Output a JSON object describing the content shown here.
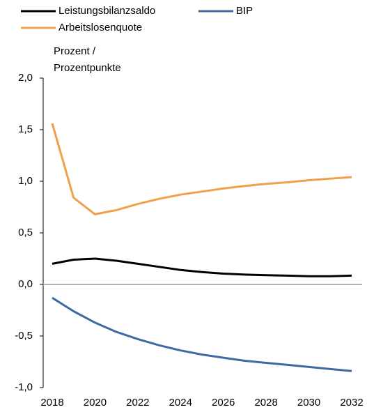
{
  "chart_data": {
    "type": "line",
    "y_label": [
      "Prozent /",
      "Prozentpunkte"
    ],
    "x": [
      2018,
      2019,
      2020,
      2021,
      2022,
      2023,
      2024,
      2025,
      2026,
      2027,
      2028,
      2029,
      2030,
      2031,
      2032
    ],
    "xlim": [
      2018,
      2032
    ],
    "xticks": [
      2018,
      2020,
      2022,
      2024,
      2026,
      2028,
      2030,
      2032
    ],
    "ylim": [
      -1,
      2
    ],
    "yticks": [
      {
        "value": -1,
        "label": "-1,0"
      },
      {
        "value": -0.5,
        "label": "-0,5"
      },
      {
        "value": 0,
        "label": "0,0"
      },
      {
        "value": 0.5,
        "label": "0,5"
      },
      {
        "value": 1,
        "label": "1,0"
      },
      {
        "value": 1.5,
        "label": "1,5"
      },
      {
        "value": 2,
        "label": "2,0"
      }
    ],
    "zero_line": true,
    "series": [
      {
        "name": "Leistungsbilanzsaldo",
        "color": "#000000",
        "values": [
          0.2,
          0.24,
          0.25,
          0.23,
          0.2,
          0.17,
          0.14,
          0.12,
          0.105,
          0.095,
          0.09,
          0.085,
          0.08,
          0.08,
          0.085
        ]
      },
      {
        "name": "BIP",
        "color": "#3e6aa3",
        "values": [
          -0.13,
          -0.26,
          -0.37,
          -0.46,
          -0.53,
          -0.59,
          -0.64,
          -0.68,
          -0.71,
          -0.74,
          -0.76,
          -0.78,
          -0.8,
          -0.82,
          -0.84
        ]
      },
      {
        "name": "Arbeitslosenquote",
        "color": "#f0a04b",
        "values": [
          1.56,
          0.84,
          0.68,
          0.72,
          0.78,
          0.83,
          0.87,
          0.9,
          0.93,
          0.955,
          0.975,
          0.99,
          1.01,
          1.025,
          1.04
        ]
      }
    ]
  }
}
